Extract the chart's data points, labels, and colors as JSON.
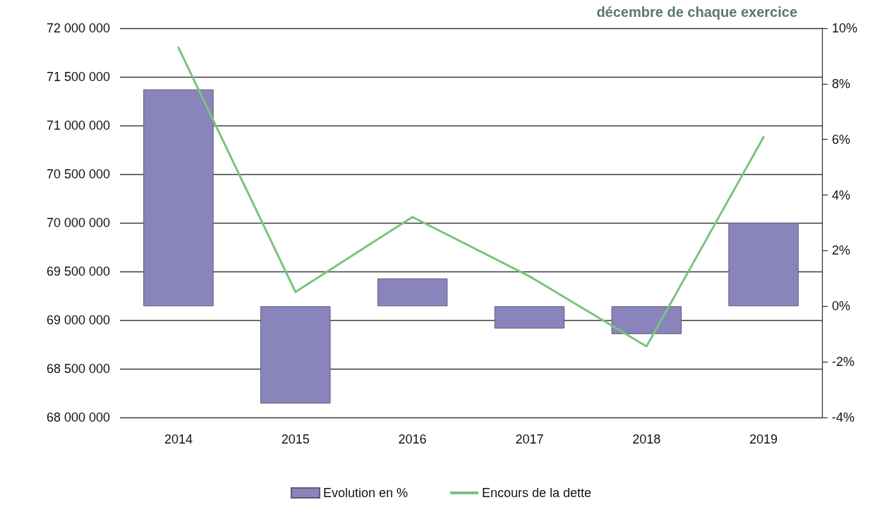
{
  "chart_data": {
    "type": "bar",
    "title": "décembre de chaque exercice",
    "categories": [
      "2014",
      "2015",
      "2016",
      "2017",
      "2018",
      "2019"
    ],
    "series": [
      {
        "name": "Evolution en %",
        "axis": "y2",
        "color": "#8a84bd",
        "values": [
          7.8,
          -3.5,
          1.0,
          -0.8,
          -1.0,
          3.0
        ]
      },
      {
        "name": "Encours de la dette",
        "type": "line",
        "color": "#79c47c",
        "values": [
          71800000,
          69290000,
          70060000,
          69450000,
          68730000,
          70880000
        ]
      }
    ],
    "ylim": [
      68000000,
      72000000
    ],
    "yticks": [
      {
        "value": 68000000,
        "label": "68 000 000"
      },
      {
        "value": 68500000,
        "label": "68 500 000"
      },
      {
        "value": 69000000,
        "label": "69 000 000"
      },
      {
        "value": 69500000,
        "label": "69 500 000"
      },
      {
        "value": 70000000,
        "label": "70 000 000"
      },
      {
        "value": 70500000,
        "label": "70 500 000"
      },
      {
        "value": 71000000,
        "label": "71 000 000"
      },
      {
        "value": 71500000,
        "label": "71 500 000"
      },
      {
        "value": 72000000,
        "label": "72 000 000"
      }
    ],
    "y2lim": [
      -4,
      10
    ],
    "y2ticks": [
      {
        "value": -4,
        "label": "-4%"
      },
      {
        "value": -2,
        "label": "-2%"
      },
      {
        "value": 0,
        "label": "0%"
      },
      {
        "value": 2,
        "label": "2%"
      },
      {
        "value": 4,
        "label": "4%"
      },
      {
        "value": 6,
        "label": "6%"
      },
      {
        "value": 8,
        "label": "8%"
      },
      {
        "value": 10,
        "label": "10%"
      }
    ],
    "grid": "y",
    "legend": "bottom",
    "marker": "none",
    "line_style": "solid"
  }
}
